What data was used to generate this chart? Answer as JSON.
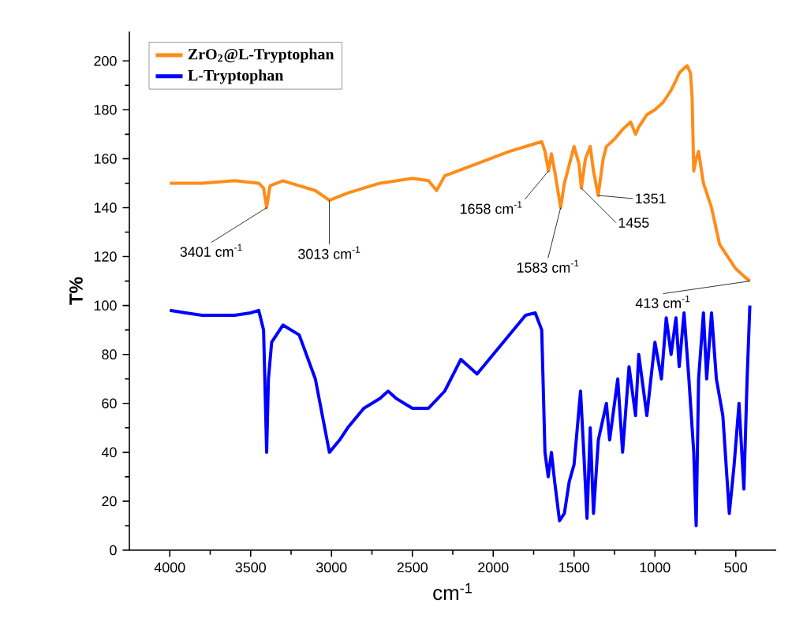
{
  "chart_data": {
    "type": "line",
    "xlabel": "cm$^{-1}$",
    "ylabel": "T%",
    "xlim": [
      4250,
      250
    ],
    "ylim": [
      0,
      212
    ],
    "xticks": [
      4000,
      3500,
      3000,
      2500,
      2000,
      1500,
      1000,
      500
    ],
    "yticks": [
      0,
      20,
      40,
      60,
      80,
      100,
      120,
      140,
      160,
      180,
      200
    ],
    "grid": false,
    "legend": "top left",
    "marker": "none",
    "line_style": "solid",
    "series": [
      {
        "name": "ZrO$_{2}$@L-Tryptophan",
        "color": "#ff8c1a",
        "x": [
          4000,
          3800,
          3600,
          3450,
          3420,
          3401,
          3380,
          3300,
          3200,
          3100,
          3013,
          2900,
          2700,
          2500,
          2400,
          2350,
          2300,
          2100,
          1900,
          1750,
          1700,
          1680,
          1658,
          1640,
          1620,
          1583,
          1560,
          1500,
          1470,
          1455,
          1430,
          1400,
          1380,
          1351,
          1320,
          1300,
          1250,
          1200,
          1150,
          1120,
          1100,
          1050,
          1000,
          950,
          900,
          870,
          850,
          820,
          800,
          780,
          770,
          760,
          745,
          730,
          700,
          650,
          600,
          550,
          500,
          450,
          413
        ],
        "values": [
          150,
          150,
          151,
          150,
          148,
          140,
          149,
          151,
          149,
          147,
          143,
          146,
          150,
          152,
          151,
          147,
          153,
          158,
          163,
          166,
          167,
          163,
          155,
          162,
          155,
          140,
          150,
          165,
          158,
          148,
          160,
          165,
          155,
          145,
          160,
          165,
          168,
          172,
          175,
          170,
          173,
          178,
          180,
          183,
          188,
          192,
          195,
          197,
          198,
          195,
          185,
          155,
          160,
          163,
          150,
          140,
          125,
          120,
          115,
          112,
          110
        ]
      },
      {
        "name": "L-Tryptophan",
        "color": "#0000ff",
        "x": [
          4000,
          3900,
          3800,
          3600,
          3500,
          3450,
          3420,
          3401,
          3390,
          3370,
          3300,
          3200,
          3100,
          3013,
          2950,
          2900,
          2800,
          2700,
          2650,
          2600,
          2500,
          2400,
          2300,
          2200,
          2150,
          2100,
          2000,
          1900,
          1800,
          1740,
          1700,
          1680,
          1660,
          1640,
          1620,
          1590,
          1560,
          1530,
          1500,
          1460,
          1440,
          1420,
          1400,
          1380,
          1350,
          1300,
          1280,
          1230,
          1200,
          1160,
          1120,
          1100,
          1050,
          1000,
          960,
          930,
          900,
          870,
          850,
          820,
          790,
          760,
          745,
          730,
          700,
          680,
          650,
          620,
          580,
          540,
          510,
          480,
          450,
          430,
          413
        ],
        "values": [
          98,
          97,
          96,
          96,
          97,
          98,
          90,
          40,
          70,
          85,
          92,
          88,
          70,
          40,
          45,
          50,
          58,
          62,
          65,
          62,
          58,
          58,
          65,
          78,
          75,
          72,
          80,
          88,
          96,
          97,
          90,
          40,
          30,
          40,
          28,
          12,
          15,
          28,
          35,
          65,
          40,
          13,
          50,
          15,
          45,
          60,
          45,
          70,
          40,
          75,
          55,
          80,
          55,
          85,
          70,
          95,
          80,
          95,
          75,
          97,
          70,
          40,
          10,
          70,
          97,
          70,
          97,
          70,
          55,
          15,
          35,
          60,
          25,
          70,
          100
        ]
      }
    ],
    "annotations": [
      {
        "text": "3401 cm$^{-1}$",
        "x": 3401,
        "y": 140
      },
      {
        "text": "3013 cm$^{-1}$",
        "x": 3013,
        "y": 143
      },
      {
        "text": "1658 cm$^{-1}$",
        "x": 1658,
        "y": 155
      },
      {
        "text": "1583 cm$^{-1}$",
        "x": 1583,
        "y": 140
      },
      {
        "text": "1351",
        "x": 1351,
        "y": 145
      },
      {
        "text": "1455",
        "x": 1455,
        "y": 148
      },
      {
        "text": "413 cm$^{-1}$",
        "x": 413,
        "y": 110
      }
    ]
  }
}
